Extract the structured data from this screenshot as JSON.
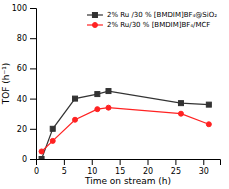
{
  "chart_data": {
    "type": "line",
    "x": [
      1,
      3,
      7,
      11,
      13,
      26,
      31
    ],
    "series": [
      {
        "name": "2% Ru /30 % [BMDIM]BF₄@SiO₂",
        "color": "#333333",
        "marker": "square",
        "values": [
          0,
          20,
          40,
          43,
          45,
          37,
          36
        ]
      },
      {
        "name": "2% Ru/30 % [BMDIM]BF₄/MCF",
        "color": "#ff2222",
        "marker": "circle",
        "values": [
          5,
          12,
          26,
          33,
          34,
          30,
          23
        ]
      }
    ],
    "xlabel": "Time on stream (h)",
    "ylabel": "TOF (h⁻¹)",
    "xlim": [
      0,
      33
    ],
    "ylim": [
      0,
      100
    ],
    "xticks": [
      0,
      5,
      10,
      15,
      20,
      25,
      30
    ],
    "yticks": [
      0,
      20,
      40,
      60,
      80,
      100
    ],
    "grid": false,
    "legend": "upper right"
  }
}
